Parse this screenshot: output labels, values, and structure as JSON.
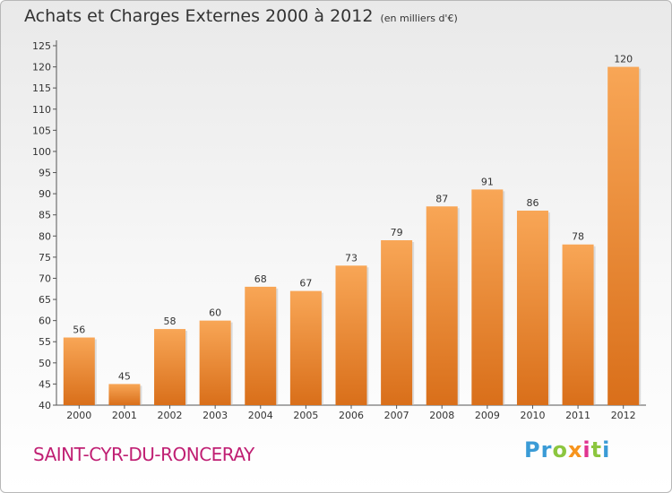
{
  "title": {
    "main": "Achats et Charges Externes 2000 à 2012",
    "sub": "(en milliers d'€)"
  },
  "place_name": "SAINT-CYR-DU-RONCERAY",
  "logo_text": "Proxiti",
  "colors": {
    "bar_top": "#f8a656",
    "bar_bottom": "#d96f1a",
    "place": "#c01f73"
  },
  "chart_data": {
    "type": "bar",
    "categories": [
      "2000",
      "2001",
      "2002",
      "2003",
      "2004",
      "2005",
      "2006",
      "2007",
      "2008",
      "2009",
      "2010",
      "2011",
      "2012"
    ],
    "values": [
      56,
      45,
      58,
      60,
      68,
      67,
      73,
      79,
      87,
      91,
      86,
      78,
      120
    ],
    "ylim": [
      40,
      125
    ],
    "yticks": [
      40,
      45,
      50,
      55,
      60,
      65,
      70,
      75,
      80,
      85,
      90,
      95,
      100,
      105,
      110,
      115,
      120,
      125
    ],
    "grid": false,
    "data_labels": true
  }
}
